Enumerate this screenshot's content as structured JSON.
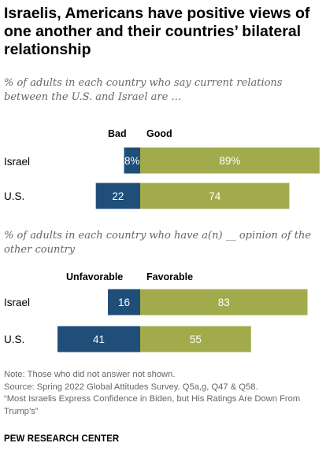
{
  "title": "Israelis, Americans have positive views of one another and their countries’ bilateral relationship",
  "colors": {
    "negative": "#1f4e79",
    "positive": "#a2ab4c",
    "label_text": "#ffffff"
  },
  "chart_data": [
    {
      "type": "bar",
      "stacked": true,
      "orientation": "horizontal",
      "subtitle": "% of adults in each country who say current relations between the U.S. and Israel are …",
      "negative_label": "Bad",
      "positive_label": "Good",
      "categories": [
        "Israel",
        "U.S."
      ],
      "series": [
        {
          "name": "Bad",
          "values": [
            8,
            22
          ],
          "labels": [
            "8%",
            "22"
          ]
        },
        {
          "name": "Good",
          "values": [
            89,
            74
          ],
          "labels": [
            "89%",
            "74"
          ]
        }
      ]
    },
    {
      "type": "bar",
      "stacked": true,
      "orientation": "horizontal",
      "subtitle": "% of adults in each country who have a(n) __ opinion of the other country",
      "negative_label": "Unfavorable",
      "positive_label": "Favorable",
      "categories": [
        "Israel",
        "U.S."
      ],
      "series": [
        {
          "name": "Unfavorable",
          "values": [
            16,
            41
          ],
          "labels": [
            "16",
            "41"
          ]
        },
        {
          "name": "Favorable",
          "values": [
            83,
            55
          ],
          "labels": [
            "83",
            "55"
          ]
        }
      ]
    }
  ],
  "notes": {
    "note": "Note: Those who did not answer not shown.",
    "source": "Source: Spring 2022 Global Attitudes Survey. Q5a,g, Q47 & Q58.",
    "report": "“Most Israelis Express Confidence in Biden, but His Ratings Are Down From Trump’s”"
  },
  "org": "PEW RESEARCH CENTER"
}
